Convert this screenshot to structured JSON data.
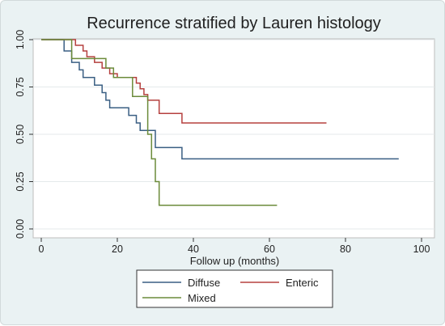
{
  "chart_data": {
    "type": "line",
    "step": true,
    "title": "Recurrence stratified by Lauren histology",
    "xlabel": "Follow up (months)",
    "ylabel": "",
    "xlim": [
      0,
      100
    ],
    "ylim": [
      0,
      1
    ],
    "x_ticks": [
      "0",
      "20",
      "40",
      "60",
      "80",
      "100"
    ],
    "y_ticks": [
      "0.00",
      "0.25",
      "0.50",
      "0.75",
      "1.00"
    ],
    "grid": true,
    "legend_position": "bottom",
    "series": [
      {
        "name": "Diffuse",
        "color": "#3a5f83",
        "points": [
          [
            0,
            1.0
          ],
          [
            6,
            1.0
          ],
          [
            6,
            0.94
          ],
          [
            8,
            0.94
          ],
          [
            8,
            0.88
          ],
          [
            10,
            0.88
          ],
          [
            10,
            0.84
          ],
          [
            11,
            0.84
          ],
          [
            11,
            0.8
          ],
          [
            14,
            0.8
          ],
          [
            14,
            0.76
          ],
          [
            16,
            0.76
          ],
          [
            16,
            0.72
          ],
          [
            17,
            0.72
          ],
          [
            17,
            0.68
          ],
          [
            18,
            0.68
          ],
          [
            18,
            0.64
          ],
          [
            23,
            0.64
          ],
          [
            23,
            0.6
          ],
          [
            25,
            0.6
          ],
          [
            25,
            0.56
          ],
          [
            26,
            0.56
          ],
          [
            26,
            0.52
          ],
          [
            30,
            0.52
          ],
          [
            30,
            0.43
          ],
          [
            37,
            0.43
          ],
          [
            37,
            0.37
          ],
          [
            94,
            0.37
          ]
        ]
      },
      {
        "name": "Enteric",
        "color": "#b5403f",
        "points": [
          [
            0,
            1.0
          ],
          [
            9,
            1.0
          ],
          [
            9,
            0.97
          ],
          [
            11,
            0.97
          ],
          [
            11,
            0.94
          ],
          [
            12,
            0.94
          ],
          [
            12,
            0.91
          ],
          [
            14,
            0.91
          ],
          [
            14,
            0.88
          ],
          [
            16,
            0.88
          ],
          [
            16,
            0.85
          ],
          [
            18,
            0.85
          ],
          [
            18,
            0.82
          ],
          [
            20,
            0.82
          ],
          [
            20,
            0.8
          ],
          [
            25,
            0.8
          ],
          [
            25,
            0.77
          ],
          [
            26,
            0.77
          ],
          [
            26,
            0.74
          ],
          [
            27,
            0.74
          ],
          [
            27,
            0.71
          ],
          [
            28,
            0.71
          ],
          [
            28,
            0.68
          ],
          [
            31,
            0.68
          ],
          [
            31,
            0.61
          ],
          [
            37,
            0.61
          ],
          [
            37,
            0.56
          ],
          [
            75,
            0.56
          ]
        ]
      },
      {
        "name": "Mixed",
        "color": "#6b8b3a",
        "points": [
          [
            0,
            1.0
          ],
          [
            8,
            1.0
          ],
          [
            8,
            0.9
          ],
          [
            17,
            0.9
          ],
          [
            17,
            0.85
          ],
          [
            19,
            0.85
          ],
          [
            19,
            0.8
          ],
          [
            24,
            0.8
          ],
          [
            24,
            0.7
          ],
          [
            28,
            0.7
          ],
          [
            28,
            0.5
          ],
          [
            29,
            0.5
          ],
          [
            29,
            0.37
          ],
          [
            30,
            0.37
          ],
          [
            30,
            0.25
          ],
          [
            31,
            0.25
          ],
          [
            31,
            0.125
          ],
          [
            62,
            0.125
          ]
        ]
      }
    ]
  }
}
